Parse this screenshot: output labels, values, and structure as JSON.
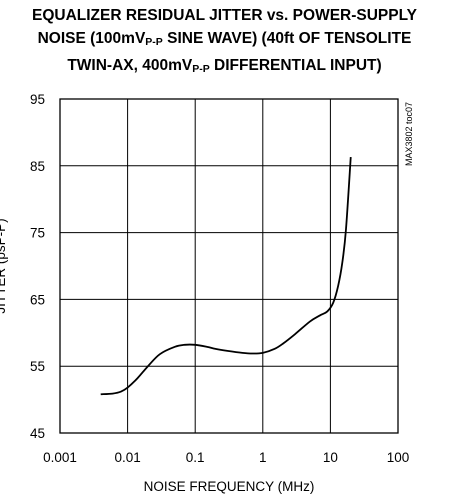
{
  "chart_data": {
    "type": "line",
    "title": {
      "line1": "EQUALIZER RESIDUAL JITTER vs. POWER-SUPPLY",
      "line2_a": "NOISE (100mV",
      "line2_sub": "P-P",
      "line2_b": " SINE WAVE) (40ft OF TENSOLITE",
      "line3_a": "TWIN-AX, 400mV",
      "line3_sub": "P-P",
      "line3_b": " DIFFERENTIAL INPUT)"
    },
    "xlabel": "NOISE FREQUENCY (MHz)",
    "ylabel": "JITTER (psP-P)",
    "annotation": "MAX3802 toc07",
    "x_scale": "log",
    "xlim": [
      0.001,
      100
    ],
    "ylim": [
      45,
      95
    ],
    "x_ticks": [
      0.001,
      0.01,
      0.1,
      1,
      10,
      100
    ],
    "x_tick_labels": [
      "0.001",
      "0.01",
      "0.1",
      "1",
      "10",
      "100"
    ],
    "y_ticks": [
      45,
      55,
      65,
      75,
      85,
      95
    ],
    "y_tick_labels": [
      "45",
      "55",
      "65",
      "75",
      "85",
      "95"
    ],
    "grid": true,
    "series": [
      {
        "x": [
          0.004,
          0.006,
          0.008,
          0.01,
          0.014,
          0.02,
          0.03,
          0.05,
          0.07,
          0.1,
          0.15,
          0.2,
          0.3,
          0.5,
          0.7,
          1,
          1.5,
          2,
          3,
          5,
          7,
          9,
          11,
          13,
          15,
          17,
          20
        ],
        "y": [
          50.8,
          50.9,
          51.2,
          51.8,
          53.2,
          55.0,
          56.8,
          57.9,
          58.2,
          58.2,
          57.9,
          57.6,
          57.3,
          57.0,
          56.9,
          57.0,
          57.6,
          58.4,
          59.8,
          61.7,
          62.6,
          63.2,
          64.5,
          67.0,
          70.5,
          75.5,
          86.3
        ]
      }
    ]
  }
}
